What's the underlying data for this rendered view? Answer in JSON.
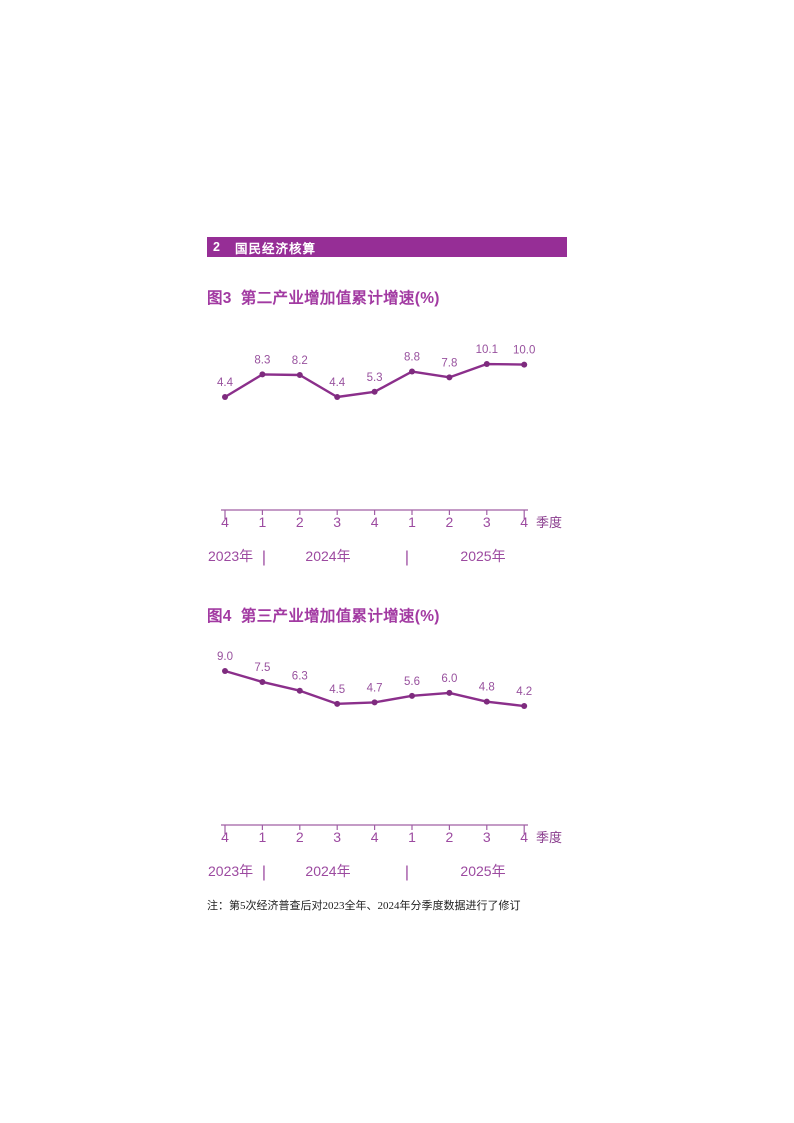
{
  "section": {
    "number": "2",
    "title": "国民经济核算"
  },
  "chart_data": [
    {
      "type": "line",
      "title": "图3  第二产业增加值累计增速(%)",
      "categories": [
        "4",
        "1",
        "2",
        "3",
        "4",
        "1",
        "2",
        "3",
        "4"
      ],
      "x_unit": "季度",
      "values": [
        4.4,
        8.3,
        8.2,
        4.4,
        5.3,
        8.8,
        7.8,
        10.1,
        10.0
      ],
      "year_groups": [
        "2023年",
        "2024年",
        "2025年"
      ],
      "year_separator": "|",
      "data_labels_shown": true,
      "y_axis_shown": false,
      "gridlines": false,
      "legend": "none"
    },
    {
      "type": "line",
      "title": "图4  第三产业增加值累计增速(%)",
      "categories": [
        "4",
        "1",
        "2",
        "3",
        "4",
        "1",
        "2",
        "3",
        "4"
      ],
      "x_unit": "季度",
      "values": [
        9.0,
        7.5,
        6.3,
        4.5,
        4.7,
        5.6,
        6.0,
        4.8,
        4.2
      ],
      "year_groups": [
        "2023年",
        "2024年",
        "2025年"
      ],
      "year_separator": "|",
      "data_labels_shown": true,
      "y_axis_shown": false,
      "gridlines": false,
      "legend": "none"
    }
  ],
  "note": "注：第5次经济普查后对2023全年、2024年分季度数据进行了修订",
  "colors": {
    "section_bar_bg": "#962E96",
    "section_bar_text": "#FFFFFF",
    "chart_title": "#A23AA2",
    "line": "#8B2F8B",
    "point": "#7E2B7E",
    "data_label": "#98519E",
    "axis": "#A05FA5",
    "tick_label": "#9C4AA0",
    "unit_label": "#8A3D8E",
    "year_label": "#9C4AA0",
    "note_text": "#1F1F1F"
  }
}
